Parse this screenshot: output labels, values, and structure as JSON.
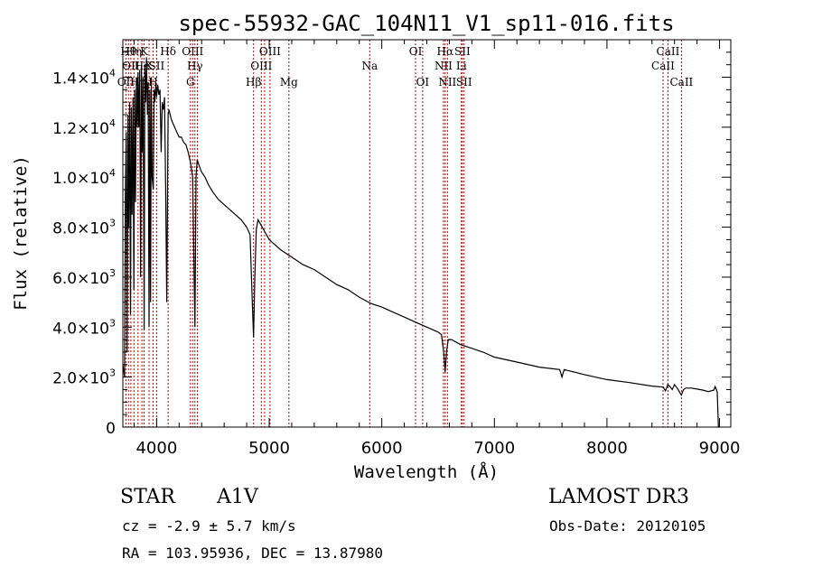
{
  "chart_data": {
    "type": "line",
    "title": "spec-55932-GAC_104N11_V1_sp11-016.fits",
    "xlabel": "Wavelength (Å)",
    "ylabel": "Flux (relative)",
    "xlim": [
      3700,
      9100
    ],
    "ylim": [
      0,
      15500
    ],
    "x_ticks": [
      {
        "value": 4000,
        "label": "4000"
      },
      {
        "value": 5000,
        "label": "5000"
      },
      {
        "value": 6000,
        "label": "6000"
      },
      {
        "value": 7000,
        "label": "7000"
      },
      {
        "value": 8000,
        "label": "8000"
      },
      {
        "value": 9000,
        "label": "9000"
      }
    ],
    "y_ticks": [
      {
        "value": 0,
        "mant": "0",
        "exp": ""
      },
      {
        "value": 2000,
        "mant": "2.0×10",
        "exp": "3"
      },
      {
        "value": 4000,
        "mant": "4.0×10",
        "exp": "3"
      },
      {
        "value": 6000,
        "mant": "6.0×10",
        "exp": "3"
      },
      {
        "value": 8000,
        "mant": "8.0×10",
        "exp": "3"
      },
      {
        "value": 10000,
        "mant": "1.0×10",
        "exp": "4"
      },
      {
        "value": 12000,
        "mant": "1.2×10",
        "exp": "4"
      },
      {
        "value": 14000,
        "mant": "1.4×10",
        "exp": "4"
      }
    ],
    "series": [
      {
        "name": "spectrum",
        "x": [
          3700,
          3715,
          3722,
          3730,
          3738,
          3745,
          3752,
          3760,
          3768,
          3775,
          3782,
          3790,
          3798,
          3805,
          3812,
          3820,
          3828,
          3835,
          3842,
          3850,
          3858,
          3865,
          3872,
          3880,
          3889,
          3895,
          3902,
          3910,
          3918,
          3925,
          3933,
          3940,
          3946,
          3953,
          3960,
          3970,
          3978,
          3985,
          3992,
          4000,
          4010,
          4020,
          4030,
          4040,
          4050,
          4060,
          4070,
          4080,
          4090,
          4102,
          4110,
          4125,
          4140,
          4160,
          4180,
          4200,
          4220,
          4240,
          4260,
          4280,
          4300,
          4320,
          4330,
          4340,
          4350,
          4360,
          4375,
          4400,
          4430,
          4460,
          4500,
          4550,
          4600,
          4650,
          4700,
          4750,
          4800,
          4830,
          4850,
          4861,
          4872,
          4885,
          4900,
          4950,
          5000,
          5100,
          5200,
          5300,
          5400,
          5500,
          5600,
          5700,
          5800,
          5900,
          6000,
          6100,
          6200,
          6300,
          6400,
          6500,
          6530,
          6550,
          6563,
          6575,
          6590,
          6620,
          6700,
          6800,
          6900,
          7000,
          7200,
          7400,
          7580,
          7600,
          7620,
          7800,
          8000,
          8200,
          8400,
          8500,
          8520,
          8540,
          8560,
          8580,
          8600,
          8630,
          8660,
          8680,
          8700,
          8750,
          8800,
          8850,
          8900,
          8950,
          8960,
          8970,
          8980,
          8990,
          9000
        ],
        "y": [
          2500,
          2000,
          9000,
          11800,
          3000,
          12500,
          8000,
          13000,
          4500,
          12800,
          8500,
          13200,
          5500,
          13500,
          9000,
          14000,
          12000,
          14200,
          12000,
          14300,
          6000,
          14500,
          11000,
          14000,
          3900,
          14500,
          13000,
          14800,
          12500,
          13800,
          4000,
          13500,
          5000,
          14000,
          10000,
          9500,
          13500,
          13000,
          13800,
          13200,
          13700,
          13300,
          13500,
          11000,
          13000,
          12700,
          13200,
          9500,
          5000,
          12500,
          12700,
          12400,
          12200,
          12000,
          11800,
          11600,
          11600,
          11400,
          11300,
          11000,
          10600,
          10000,
          7000,
          4000,
          10000,
          10700,
          10500,
          10200,
          10000,
          9700,
          9400,
          9100,
          8900,
          8700,
          8500,
          8300,
          8000,
          7700,
          5000,
          3600,
          6000,
          7900,
          8300,
          7900,
          7500,
          7100,
          6800,
          6500,
          6300,
          6000,
          5700,
          5500,
          5200,
          4950,
          4800,
          4600,
          4400,
          4200,
          4000,
          3800,
          3700,
          3000,
          2200,
          3000,
          3500,
          3500,
          3300,
          3150,
          3000,
          2800,
          2600,
          2400,
          2300,
          2000,
          2300,
          2100,
          1900,
          1780,
          1640,
          1600,
          1450,
          1700,
          1620,
          1500,
          1700,
          1520,
          1280,
          1500,
          1560,
          1560,
          1520,
          1480,
          1420,
          1480,
          1620,
          1520,
          1400,
          0,
          0
        ]
      }
    ],
    "lines": [
      {
        "wl": 3727,
        "label": "OII",
        "row": 2
      },
      {
        "wl": 3750,
        "label": "Hθ",
        "row": 0
      },
      {
        "wl": 3771,
        "label": "OII",
        "row": 1
      },
      {
        "wl": 3798,
        "label": "Hη",
        "row": 0
      },
      {
        "wl": 3835,
        "label": "Hη",
        "row": 2
      },
      {
        "wl": 3869,
        "label": "Hε",
        "row": 1
      },
      {
        "wl": 3889,
        "label": "K",
        "row": 0
      },
      {
        "wl": 3933,
        "label": "K",
        "row": 1
      },
      {
        "wl": 3968,
        "label": "H",
        "row": 2
      },
      {
        "wl": 4000,
        "label": "SII",
        "row": 1
      },
      {
        "wl": 4102,
        "label": "Hδ",
        "row": 0
      },
      {
        "wl": 4300,
        "label": "G",
        "row": 2
      },
      {
        "wl": 4320,
        "label": "OIII",
        "row": 0
      },
      {
        "wl": 4340,
        "label": "Hγ",
        "row": 1
      },
      {
        "wl": 4363,
        "label": "",
        "row": 0
      },
      {
        "wl": 4861,
        "label": "Hβ",
        "row": 2
      },
      {
        "wl": 4930,
        "label": "OIII",
        "row": 1
      },
      {
        "wl": 4959,
        "label": "",
        "row": 0
      },
      {
        "wl": 5007,
        "label": "OIII",
        "row": 0
      },
      {
        "wl": 5175,
        "label": "Mg",
        "row": 2
      },
      {
        "wl": 5893,
        "label": "Na",
        "row": 1
      },
      {
        "wl": 6300,
        "label": "OI",
        "row": 0
      },
      {
        "wl": 6363,
        "label": "OI",
        "row": 2
      },
      {
        "wl": 6548,
        "label": "NII",
        "row": 1
      },
      {
        "wl": 6563,
        "label": "Hα",
        "row": 0
      },
      {
        "wl": 6583,
        "label": "NII",
        "row": 2
      },
      {
        "wl": 6707,
        "label": "Li",
        "row": 1
      },
      {
        "wl": 6716,
        "label": "SII",
        "row": 0
      },
      {
        "wl": 6731,
        "label": "SII",
        "row": 2
      },
      {
        "wl": 8498,
        "label": "CaII",
        "row": 1
      },
      {
        "wl": 8542,
        "label": "CaII",
        "row": 0
      },
      {
        "wl": 8662,
        "label": "CaII",
        "row": 2
      }
    ]
  },
  "info": {
    "class_label": "STAR",
    "subclass": "A1V",
    "survey": "LAMOST DR3",
    "redshift": "cz = -2.9 ± 5.7 km/s",
    "obs_date": "Obs-Date: 20120105",
    "coords": "RA = 103.95936, DEC =  13.87980"
  }
}
